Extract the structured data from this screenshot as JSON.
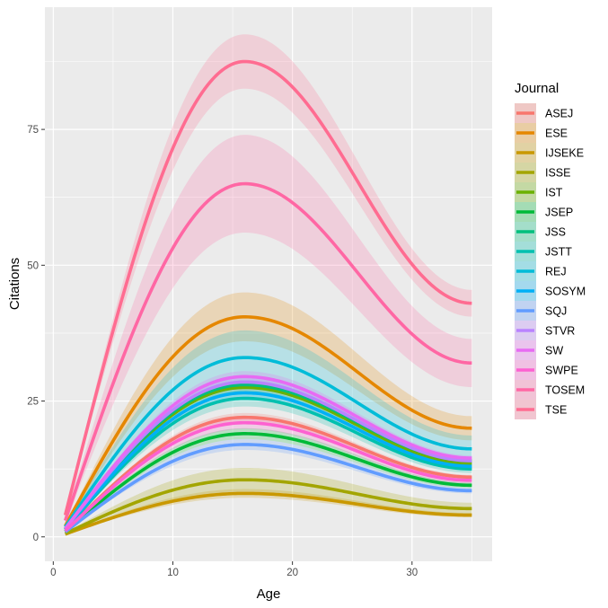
{
  "chart_data": {
    "type": "line",
    "title": "",
    "xlabel": "Age",
    "ylabel": "Citations",
    "xlim": [
      -0.7,
      36.7
    ],
    "ylim": [
      -4.5,
      97.5
    ],
    "x_ticks": [
      0,
      10,
      20,
      30
    ],
    "y_ticks": [
      0,
      25,
      50,
      75
    ],
    "grid": true,
    "legend": {
      "title": "Journal",
      "placement": "right"
    },
    "x_range": [
      1,
      35
    ],
    "peak_age": 16,
    "series": [
      {
        "name": "ASEJ",
        "color": "#F8766D",
        "start": 1.0,
        "peak": 22.0,
        "end": 11.0,
        "band": 0.8
      },
      {
        "name": "ESE",
        "color": "#E58700",
        "start": 2.0,
        "peak": 40.5,
        "end": 20.0,
        "band": 4.5
      },
      {
        "name": "IJSEKE",
        "color": "#C99800",
        "start": 0.5,
        "peak": 8.0,
        "end": 4.0,
        "band": 0.8
      },
      {
        "name": "ISSE",
        "color": "#A3A500",
        "start": 0.6,
        "peak": 10.5,
        "end": 5.2,
        "band": 2.2
      },
      {
        "name": "IST",
        "color": "#6BB100",
        "start": 1.5,
        "peak": 27.5,
        "end": 13.5,
        "band": 1.2
      },
      {
        "name": "JSEP",
        "color": "#00BA38",
        "start": 1.0,
        "peak": 19.0,
        "end": 9.5,
        "band": 1.0
      },
      {
        "name": "JSS",
        "color": "#00BF7D",
        "start": 1.5,
        "peak": 28.0,
        "end": 14.0,
        "band": 0.8
      },
      {
        "name": "JSTT",
        "color": "#00C0AF",
        "start": 1.3,
        "peak": 25.5,
        "end": 12.5,
        "band": 1.5
      },
      {
        "name": "REJ",
        "color": "#00BCD8",
        "start": 1.8,
        "peak": 33.0,
        "end": 16.2,
        "band": 5.0
      },
      {
        "name": "SOSYM",
        "color": "#00B0F6",
        "start": 1.4,
        "peak": 26.5,
        "end": 13.0,
        "band": 1.0
      },
      {
        "name": "SQJ",
        "color": "#619CFF",
        "start": 0.9,
        "peak": 17.0,
        "end": 8.5,
        "band": 1.0
      },
      {
        "name": "STVR",
        "color": "#B983FF",
        "start": 1.5,
        "peak": 28.5,
        "end": 14.0,
        "band": 1.0
      },
      {
        "name": "SW",
        "color": "#E76BF3",
        "start": 1.5,
        "peak": 29.5,
        "end": 14.5,
        "band": 1.0
      },
      {
        "name": "SWPE",
        "color": "#FD61D1",
        "start": 1.1,
        "peak": 21.0,
        "end": 10.4,
        "band": 1.2
      },
      {
        "name": "TOSEM",
        "color": "#FF67A4",
        "start": 3.0,
        "peak": 65.0,
        "end": 32.0,
        "band": 9.0
      },
      {
        "name": "TSE",
        "color": "#FF6C91",
        "start": 4.0,
        "peak": 87.5,
        "end": 43.0,
        "band": 5.0
      }
    ]
  }
}
